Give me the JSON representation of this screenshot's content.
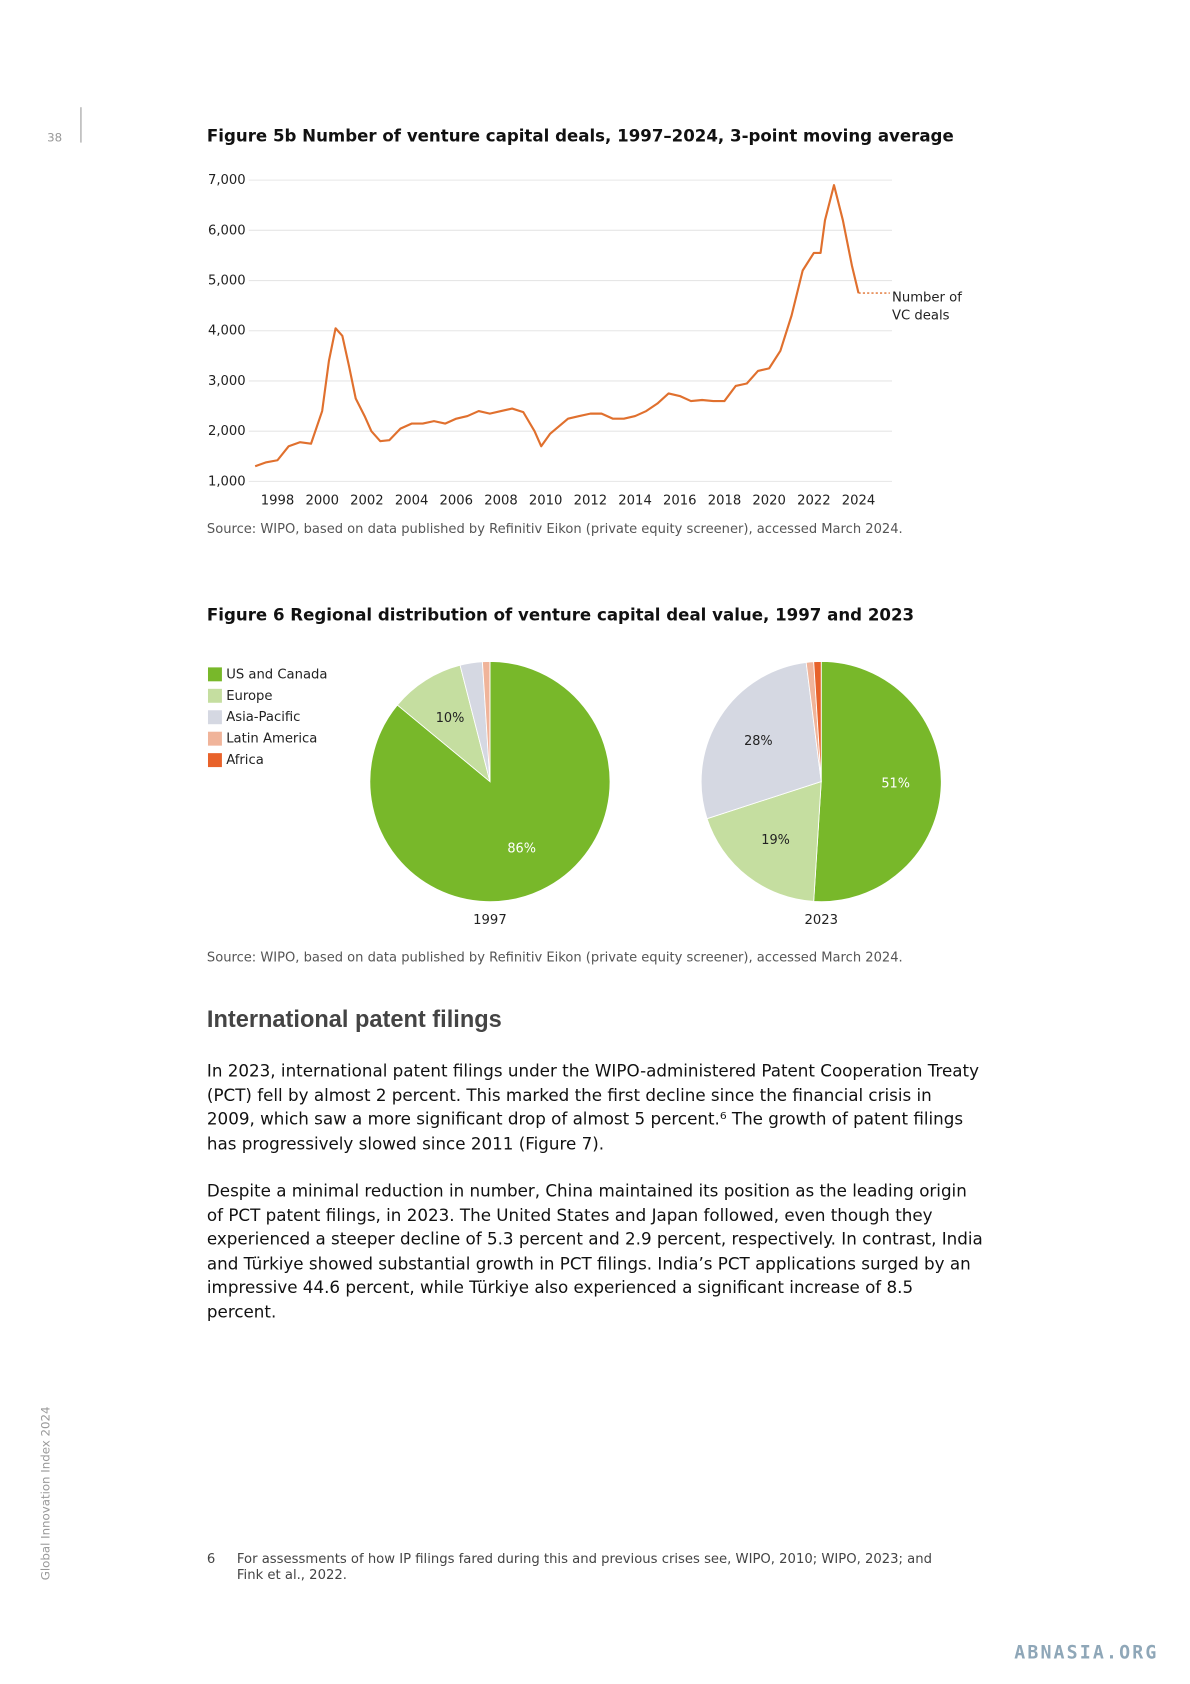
{
  "page_number": "38",
  "side_label": "Global Innovation Index 2024",
  "chart_data": [
    {
      "type": "line",
      "title": "Figure 5b Number of venture capital deals, 1997–2024, 3-point moving average",
      "x": [
        1997.0,
        1997.5,
        1998.0,
        1998.5,
        1999.0,
        1999.5,
        2000.0,
        2000.3,
        2000.6,
        2000.9,
        2001.2,
        2001.5,
        2001.9,
        2002.2,
        2002.6,
        2003.0,
        2003.5,
        2004.0,
        2004.5,
        2005.0,
        2005.5,
        2006.0,
        2006.5,
        2007.0,
        2007.5,
        2008.0,
        2008.5,
        2009.0,
        2009.5,
        2009.8,
        2010.2,
        2010.6,
        2011.0,
        2011.5,
        2012.0,
        2012.5,
        2013.0,
        2013.5,
        2014.0,
        2014.5,
        2015.0,
        2015.5,
        2016.0,
        2016.5,
        2017.0,
        2017.5,
        2018.0,
        2018.5,
        2019.0,
        2019.5,
        2020.0,
        2020.5,
        2021.0,
        2021.5,
        2022.0,
        2022.3,
        2022.5,
        2022.9,
        2023.3,
        2023.7,
        2024.0
      ],
      "series": [
        {
          "name": "Number of VC deals",
          "color": "#e0702e",
          "values": [
            1300,
            1380,
            1420,
            1700,
            1780,
            1750,
            2400,
            3400,
            4050,
            3900,
            3300,
            2650,
            2300,
            2000,
            1800,
            1820,
            2050,
            2150,
            2150,
            2200,
            2150,
            2250,
            2300,
            2400,
            2350,
            2400,
            2450,
            2380,
            2000,
            1700,
            1950,
            2100,
            2250,
            2300,
            2350,
            2350,
            2250,
            2250,
            2300,
            2400,
            2550,
            2750,
            2700,
            2600,
            2620,
            2600,
            2600,
            2900,
            2950,
            3200,
            3250,
            3600,
            4300,
            5200,
            5550,
            5550,
            6200,
            6900,
            6200,
            5300,
            4750
          ]
        }
      ],
      "xlim": [
        1997,
        2025.4
      ],
      "xticks": [
        1998,
        2000,
        2002,
        2004,
        2006,
        2008,
        2010,
        2012,
        2014,
        2016,
        2018,
        2020,
        2022,
        2024
      ],
      "ylim": [
        1000,
        7000
      ],
      "yticks": [
        {
          "value": 1000,
          "label": "1,000"
        },
        {
          "value": 2000,
          "label": "2,000"
        },
        {
          "value": 3000,
          "label": "3,000"
        },
        {
          "value": 4000,
          "label": "4,000"
        },
        {
          "value": 5000,
          "label": "5,000"
        },
        {
          "value": 6000,
          "label": "6,000"
        },
        {
          "value": 7000,
          "label": "7,000"
        }
      ],
      "grid": true,
      "source": "Source: WIPO, based on data published by Refinitiv Eikon (private equity screener), accessed March 2024."
    },
    {
      "type": "pie",
      "title": "Figure 6 Regional distribution of venture capital deal value, 1997 and 2023",
      "categories": [
        "US and Canada",
        "Europe",
        "Asia-Pacific",
        "Latin America",
        "Africa"
      ],
      "colors": [
        "#78b82a",
        "#c5dea0",
        "#d5d8e2",
        "#f0b49a",
        "#e8622a"
      ],
      "series": [
        {
          "name": "1997",
          "values": [
            86,
            10,
            3,
            1,
            0
          ],
          "value_labels": [
            "86%",
            "10%",
            null,
            null,
            null
          ]
        },
        {
          "name": "2023",
          "values": [
            51,
            19,
            28,
            1,
            1
          ],
          "value_labels": [
            "51%",
            "19%",
            "28%",
            null,
            null
          ]
        }
      ],
      "legend": "left",
      "source": "Source: WIPO, based on data published by Refinitiv Eikon (private equity screener), accessed March 2024."
    }
  ],
  "section": {
    "heading": "International patent filings",
    "paragraphs": [
      "In 2023, international patent filings under the WIPO-administered Patent Cooperation Treaty (PCT) fell by almost 2 percent. This marked the first decline since the financial crisis in 2009, which saw a more significant drop of almost 5 percent.⁶ The growth of patent filings has progressively slowed since 2011 (Figure 7).",
      "Despite a minimal reduction in number, China maintained its position as the leading origin of PCT patent filings, in 2023. The United States and Japan followed, even though they experienced a steeper decline of 5.3 percent and 2.9 percent, respectively. In contrast, India and Türkiye showed substantial growth in PCT filings. India’s PCT applications surged by an impressive 44.6 percent, while Türkiye also experienced a significant increase of 8.5 percent."
    ]
  },
  "footnote": {
    "number": "6",
    "text": "For assessments of how IP filings fared during this and previous crises see, WIPO, 2010; WIPO, 2023; and Fink et al., 2022."
  },
  "watermark": "ABNASIA.ORG"
}
